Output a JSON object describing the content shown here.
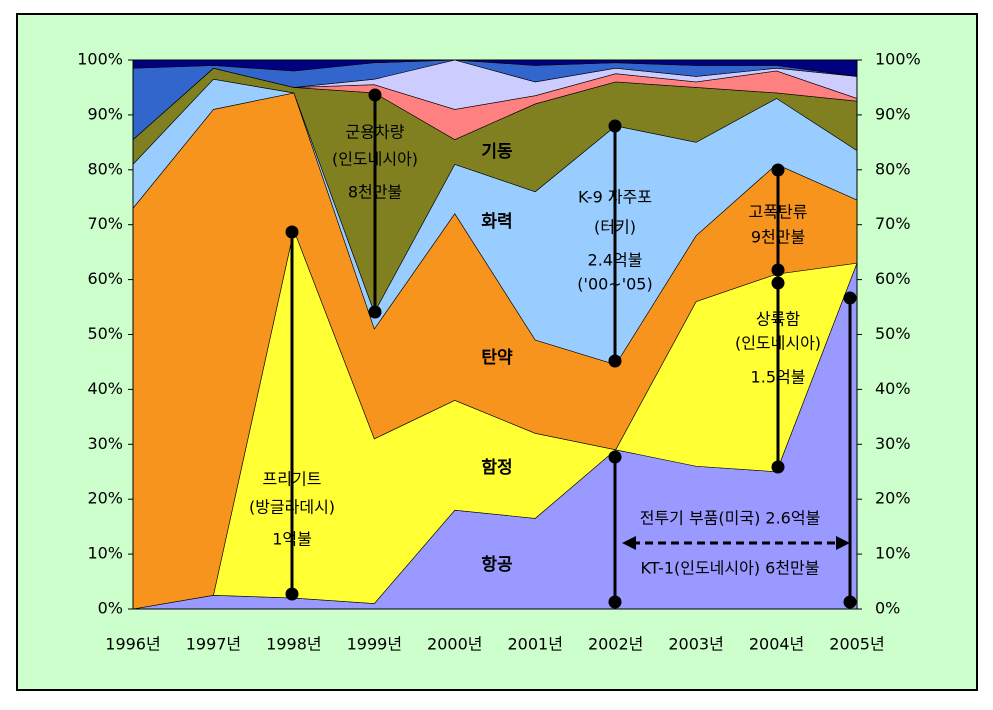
{
  "chart_data": {
    "type": "stacked_area",
    "categories": [
      "1996년",
      "1997년",
      "1998년",
      "1999년",
      "2000년",
      "2001년",
      "2002년",
      "2003년",
      "2004년",
      "2005년"
    ],
    "series": [
      {
        "name": "항공",
        "color": "#9999ff",
        "values": [
          0,
          2.5,
          2,
          1,
          18,
          16.5,
          29,
          26,
          25,
          63
        ]
      },
      {
        "name": "함정",
        "color": "#ffff33",
        "values": [
          0,
          0,
          67,
          30,
          20,
          15.5,
          0,
          30,
          36,
          0
        ]
      },
      {
        "name": "탄약",
        "color": "#f7941d",
        "values": [
          73,
          88.5,
          25,
          20,
          34,
          17,
          15.5,
          12,
          20,
          11.5
        ]
      },
      {
        "name": "화력",
        "color": "#99ccff",
        "values": [
          8,
          5.5,
          0,
          3,
          9,
          27,
          43.5,
          17,
          12,
          9
        ]
      },
      {
        "name": "기동",
        "color": "#808020",
        "values": [
          4.5,
          2,
          1,
          40,
          4.5,
          16,
          8,
          10,
          1,
          9
        ]
      },
      {
        "color": "#ff8080",
        "values": [
          0,
          0,
          0,
          1.5,
          5.5,
          1.5,
          1.5,
          1,
          4,
          0.5
        ]
      },
      {
        "color": "#ccccff",
        "values": [
          0,
          0,
          0,
          1,
          9,
          2.5,
          1,
          1,
          0.5,
          4
        ]
      },
      {
        "color": "#3366cc",
        "values": [
          13,
          0.5,
          3,
          3,
          0,
          3,
          1,
          2,
          0.5,
          0
        ]
      },
      {
        "color": "#000080",
        "values": [
          1.5,
          1,
          2,
          0.5,
          0,
          1,
          0.5,
          1,
          1,
          3
        ]
      }
    ],
    "ylim": [
      0,
      100
    ],
    "yticks": [
      {
        "value": 0,
        "label": "0%"
      },
      {
        "value": 10,
        "label": "10%"
      },
      {
        "value": 20,
        "label": "20%"
      },
      {
        "value": 30,
        "label": "30%"
      },
      {
        "value": 40,
        "label": "40%"
      },
      {
        "value": 50,
        "label": "50%"
      },
      {
        "value": 60,
        "label": "60%"
      },
      {
        "value": 70,
        "label": "70%"
      },
      {
        "value": 80,
        "label": "80%"
      },
      {
        "value": 90,
        "label": "90%"
      },
      {
        "value": 100,
        "label": "100%"
      }
    ],
    "annotations": [
      [
        "프리기트",
        "(방글라데시)",
        "1억불"
      ],
      [
        "군용차량",
        "(인도네시아)",
        "8천만불"
      ],
      [
        "K-9 자주포",
        "(터키)",
        "2.4억불",
        "('00~'05)"
      ],
      [
        "고폭탄류",
        "9천만불"
      ],
      [
        "상륙함",
        "(인도네시아)",
        "1.5억불"
      ],
      [
        "전투기 부품(미국) 2.6억불"
      ],
      [
        "KT-1(인도네시아) 6천만불"
      ]
    ]
  }
}
